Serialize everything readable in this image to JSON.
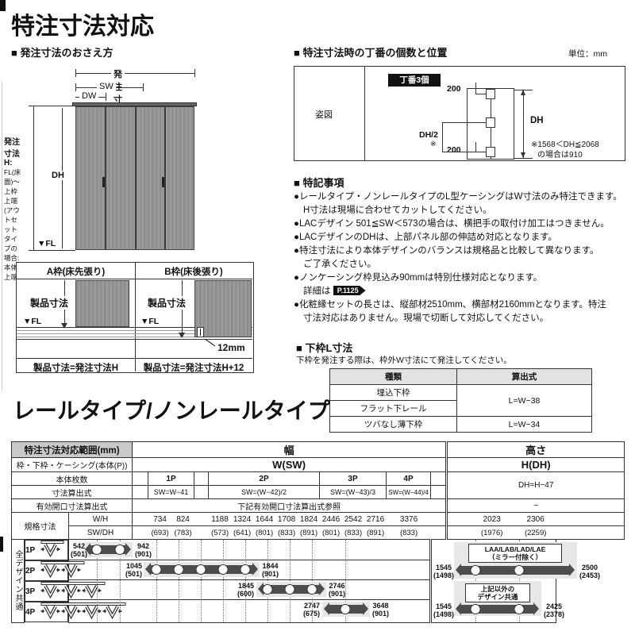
{
  "page": {
    "title": "特注寸法対応",
    "rail_heading": "レールタイプ/ノンレールタイプ"
  },
  "order_section": {
    "title": "■ 発注寸法のおさえ方",
    "dim_w": "発注寸法W",
    "dim_sw": "SW",
    "dim_dw": "DW",
    "dim_h_title": "発注寸法H:",
    "dim_h_line1": "FL(床面)～上枠上端",
    "dim_h_line2": "(アウトセットタイプの",
    "dim_h_line3": "場合:本体上端)",
    "dim_dh": "DH",
    "fl": "▼FL"
  },
  "frame_section": {
    "a_title": "A枠(床先張り)",
    "b_title": "B枠(床後張り)",
    "product_dim_a": "製品寸法",
    "product_dim_b": "製品寸法",
    "fl_a": "▼FL",
    "fl_b": "▼FL",
    "gap": "12mm",
    "a_formula": "製品寸法=発注寸法H",
    "b_formula": "製品寸法=発注寸法H+12"
  },
  "hinge": {
    "title": "■ 特注寸法時の丁番の個数と位置",
    "unit": "単位：mm",
    "figure_label": "姿図",
    "badge": "丁番3個",
    "top_offset": "200",
    "bottom_offset": "200",
    "mid": "DH/2",
    "mid_mark": "※",
    "dh": "DH",
    "note_line1": "※1568＜DH≦2068",
    "note_line2": "の場合は910"
  },
  "notes": {
    "title": "■ 特記事項",
    "items": [
      {
        "line1": "●レールタイプ・ノンレールタイプのL型ケーシングはW寸法のみ特注できます。",
        "line2": "H寸法は現場に合わせてカットしてください。"
      },
      {
        "line1": "●LACデザイン 501≦SW＜573の場合は、横把手の取付け加工はつきません。"
      },
      {
        "line1": "●LACデザインのDHは、上部パネル部の伸詰め対応となります。"
      },
      {
        "line1": "●特注寸法により本体デザインのバランスは規格品と比較して異なります。",
        "line2": "ご了承ください。"
      },
      {
        "line1": "●ノンケーシング枠見込み90mmは特別仕様対応となります。",
        "line2_prefix": "詳細は ",
        "badge": "P.1125"
      },
      {
        "line1": "●化粧縁セットの長さは、縦部材2510mm、横部材2160mmとなります。特注",
        "line2": "寸法対応はありません。現場で切断して対応してください。"
      }
    ]
  },
  "shimowaku": {
    "title": "■ 下枠L寸法",
    "subtitle": "下枠を発注する際は、枠外W寸法にて発注してください。",
    "col_type": "種類",
    "col_formula": "算出式",
    "row1_type": "埋込下枠",
    "row2_type": "フラット下レール",
    "row12_formula": "L=W−38",
    "row3_type": "ツバなし薄下枠",
    "row3_formula": "L=W−34"
  },
  "spec_table": {
    "corner_label": "特注寸法対応範囲(mm)",
    "row2_label": "枠・下枠・ケーシング(本体(P))",
    "width_label": "幅",
    "width_sub": "W(SW)",
    "height_label": "高さ",
    "height_sub": "H(DH)",
    "row_panels": "本体枚数",
    "row_formula": "寸法算出式",
    "row_opening": "有効開口寸法算出式",
    "row_standard": "規格寸法",
    "row_wh": "W/H",
    "row_swdh": "SW/DH",
    "opening_note": "下記有効開口寸法算出式参照",
    "height_formula": "DH=H−47",
    "height_opening": "−",
    "panel_groups": [
      {
        "label": "1P",
        "formula": "SW=W−41",
        "wh": [
          "734",
          "824"
        ],
        "swdh": [
          "(693)",
          "(783)"
        ]
      },
      {
        "label": "2P",
        "formula": "SW=(W−42)/2",
        "wh": [
          "1188",
          "1324",
          "1644",
          "1708",
          "1824"
        ],
        "swdh": [
          "(573)",
          "(641)",
          "(801)",
          "(833)",
          "(891)"
        ]
      },
      {
        "label": "3P",
        "formula": "SW=(W−43)/3",
        "wh": [
          "2446",
          "2542",
          "2716"
        ],
        "swdh": [
          "(801)",
          "(833)",
          "(891)"
        ]
      },
      {
        "label": "4P",
        "formula": "SW=(W−44)/4",
        "wh": [
          "3376"
        ],
        "swdh": [
          "(833)"
        ]
      }
    ],
    "height_wh": [
      "2023",
      "2306"
    ],
    "height_swdh": [
      "(1976)",
      "(2259)"
    ],
    "left_rotated": "全デザイン共通",
    "data_rows": [
      {
        "label": "1P",
        "min": "542",
        "min_sub": "(501)",
        "max": "942",
        "max_sub": "(901)"
      },
      {
        "label": "2P",
        "min": "1045",
        "min_sub": "(501)",
        "max": "1844",
        "max_sub": "(901)"
      },
      {
        "label": "3P",
        "min": "1845",
        "min_sub": "(600)",
        "max": "2746",
        "max_sub": "(901)"
      },
      {
        "label": "4P",
        "min": "2747",
        "min_sub": "(675)",
        "max": "3648",
        "max_sub": "(901)"
      }
    ],
    "height_bars": [
      {
        "label_line1": "LAA/LAB/LAD/LAE",
        "label_line2": "（ミラー付除く）",
        "min": "1545",
        "min_sub": "(1498)",
        "max": "2500",
        "max_sub": "(2453)"
      },
      {
        "label_line1": "上記以外の",
        "label_line2": "デザイン共通",
        "min": "1545",
        "min_sub": "(1498)",
        "max": "2425",
        "max_sub": "(2378)"
      }
    ],
    "colors": {
      "bar": "#4d4d4d",
      "patch": "#e7e7e7",
      "corner_bg": "#c9c9c9"
    }
  }
}
